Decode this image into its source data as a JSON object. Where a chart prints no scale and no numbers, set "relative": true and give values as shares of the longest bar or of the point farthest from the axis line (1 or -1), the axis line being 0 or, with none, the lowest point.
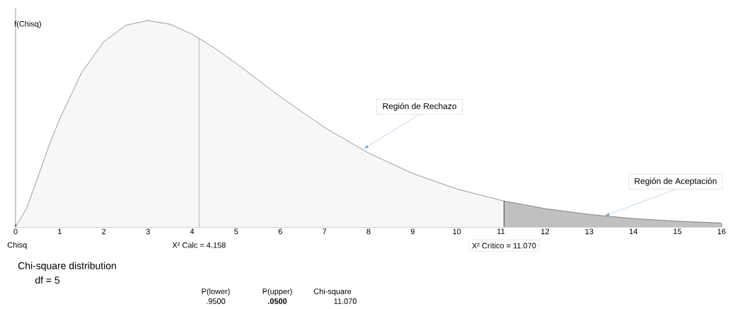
{
  "chart_data": {
    "type": "area",
    "xlabel": "Chisq",
    "ylabel": "f(Chisq)",
    "relative": true,
    "series": [
      {
        "color": "#f7f7f7",
        "x": [
          0,
          0.25,
          0.5,
          0.75,
          1,
          1.5,
          2,
          2.5,
          3,
          3.5,
          4,
          4.5,
          5,
          5.5,
          6,
          7,
          8,
          9,
          10,
          11,
          11.07
        ],
        "values": [
          0,
          0.09,
          0.238,
          0.39,
          0.523,
          0.749,
          0.897,
          0.977,
          1,
          0.982,
          0.934,
          0.868,
          0.792,
          0.711,
          0.631,
          0.482,
          0.358,
          0.259,
          0.184,
          0.129,
          0.126
        ]
      },
      {
        "color": "#c0c0c0",
        "x": [
          11.07,
          12,
          13,
          14,
          15,
          16
        ],
        "values": [
          0.126,
          0.089,
          0.061,
          0.041,
          0.028,
          0.019
        ]
      }
    ],
    "xlim": [
      0,
      16
    ],
    "xticks": [
      0,
      1,
      2,
      3,
      4,
      5,
      6,
      7,
      8,
      9,
      10,
      11,
      12,
      13,
      14,
      15,
      16
    ],
    "grid": false,
    "ref_lines": [
      {
        "axis": "x",
        "value": 4.158,
        "label": "X² Calc = 4.158",
        "color": "#5b9bd5"
      },
      {
        "axis": "x",
        "value": 11.07,
        "label": "X² Crítico = 11.070",
        "color": "#000000"
      }
    ],
    "annotations": [
      {
        "text": "Región de Rechazo",
        "x": 7.9,
        "y": 0.38
      },
      {
        "text": "Región de Aceptación",
        "x": 13.36,
        "y": 0.055
      },
      "Chi-square distribution",
      "df = 5",
      "P(lower)",
      ".9500",
      "P(upper)",
      ".0500",
      "Chi-square",
      "11.070"
    ]
  }
}
